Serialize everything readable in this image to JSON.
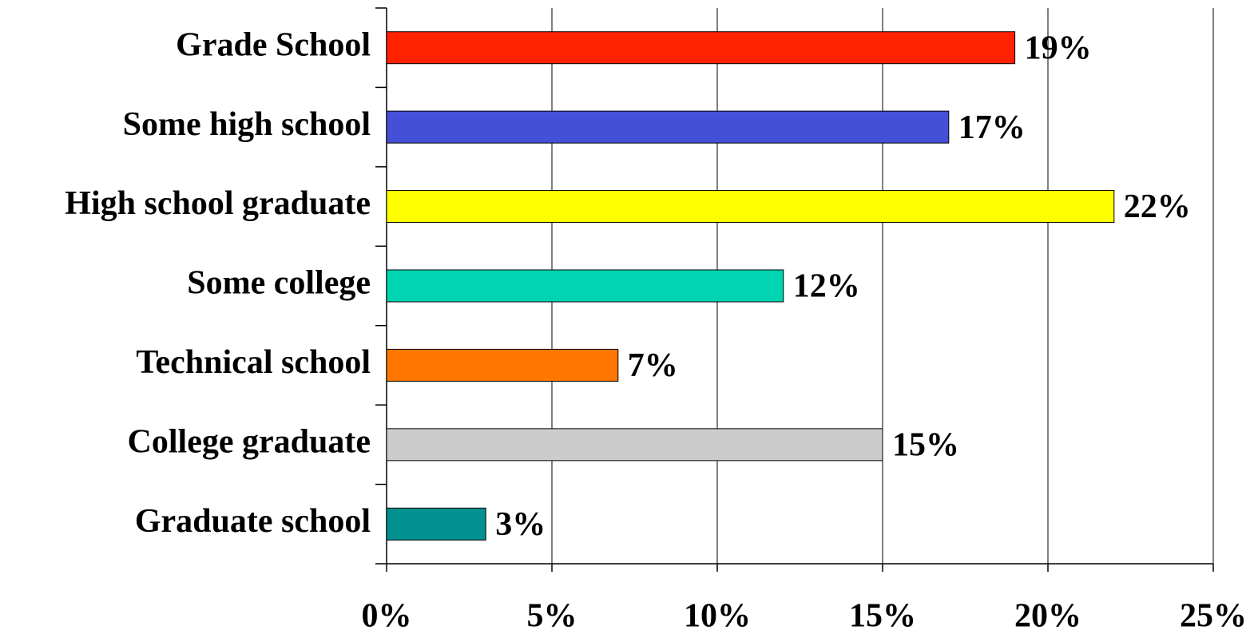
{
  "chart_data": {
    "type": "bar",
    "orientation": "horizontal",
    "categories": [
      "Grade School",
      "Some high school",
      "High school graduate",
      "Some college",
      "Technical school",
      "College graduate",
      "Graduate school"
    ],
    "values": [
      19,
      17,
      22,
      12,
      7,
      15,
      3
    ],
    "value_labels": [
      "19%",
      "17%",
      "22%",
      "12%",
      "7%",
      "15%",
      "3%"
    ],
    "colors": [
      "#ff2200",
      "#4450d8",
      "#ffff00",
      "#00d4b0",
      "#ff7700",
      "#cccccc",
      "#009090"
    ],
    "xlim": [
      0,
      25
    ],
    "xticks": [
      {
        "value": 0,
        "label": "0%"
      },
      {
        "value": 5,
        "label": "5%"
      },
      {
        "value": 10,
        "label": "10%"
      },
      {
        "value": 15,
        "label": "15%"
      },
      {
        "value": 20,
        "label": "20%"
      },
      {
        "value": 25,
        "label": "25%"
      }
    ],
    "grid": true
  }
}
